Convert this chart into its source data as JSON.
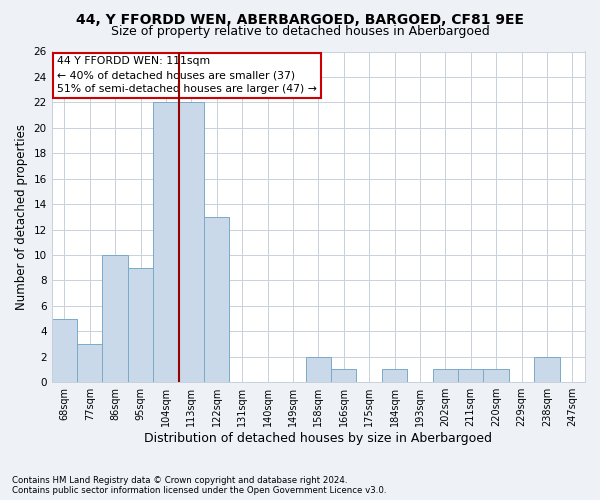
{
  "title": "44, Y FFORDD WEN, ABERBARGOED, BARGOED, CF81 9EE",
  "subtitle": "Size of property relative to detached houses in Aberbargoed",
  "xlabel": "Distribution of detached houses by size in Aberbargoed",
  "ylabel": "Number of detached properties",
  "footnote1": "Contains HM Land Registry data © Crown copyright and database right 2024.",
  "footnote2": "Contains public sector information licensed under the Open Government Licence v3.0.",
  "categories": [
    "68sqm",
    "77sqm",
    "86sqm",
    "95sqm",
    "104sqm",
    "113sqm",
    "122sqm",
    "131sqm",
    "140sqm",
    "149sqm",
    "158sqm",
    "166sqm",
    "175sqm",
    "184sqm",
    "193sqm",
    "202sqm",
    "211sqm",
    "220sqm",
    "229sqm",
    "238sqm",
    "247sqm"
  ],
  "values": [
    5,
    3,
    10,
    9,
    22,
    22,
    13,
    0,
    0,
    0,
    2,
    1,
    0,
    1,
    0,
    1,
    1,
    1,
    0,
    2,
    0
  ],
  "bar_color": "#c9d9ea",
  "bar_edge_color": "#7aaac8",
  "vline_x": 4.5,
  "vline_color": "#990000",
  "annotation_line1": "44 Y FFORDD WEN: 111sqm",
  "annotation_line2": "← 40% of detached houses are smaller (37)",
  "annotation_line3": "51% of semi-detached houses are larger (47) →",
  "annotation_box_color": "white",
  "annotation_box_edge_color": "#cc0000",
  "ylim": [
    0,
    26
  ],
  "yticks": [
    0,
    2,
    4,
    6,
    8,
    10,
    12,
    14,
    16,
    18,
    20,
    22,
    24,
    26
  ],
  "bg_color": "#eef2f7",
  "plot_bg_color": "white",
  "grid_color": "#c8d0dc",
  "title_fontsize": 10,
  "subtitle_fontsize": 9,
  "annot_fontsize": 7.8,
  "tick_fontsize": 7,
  "ylabel_fontsize": 8.5,
  "xlabel_fontsize": 9
}
